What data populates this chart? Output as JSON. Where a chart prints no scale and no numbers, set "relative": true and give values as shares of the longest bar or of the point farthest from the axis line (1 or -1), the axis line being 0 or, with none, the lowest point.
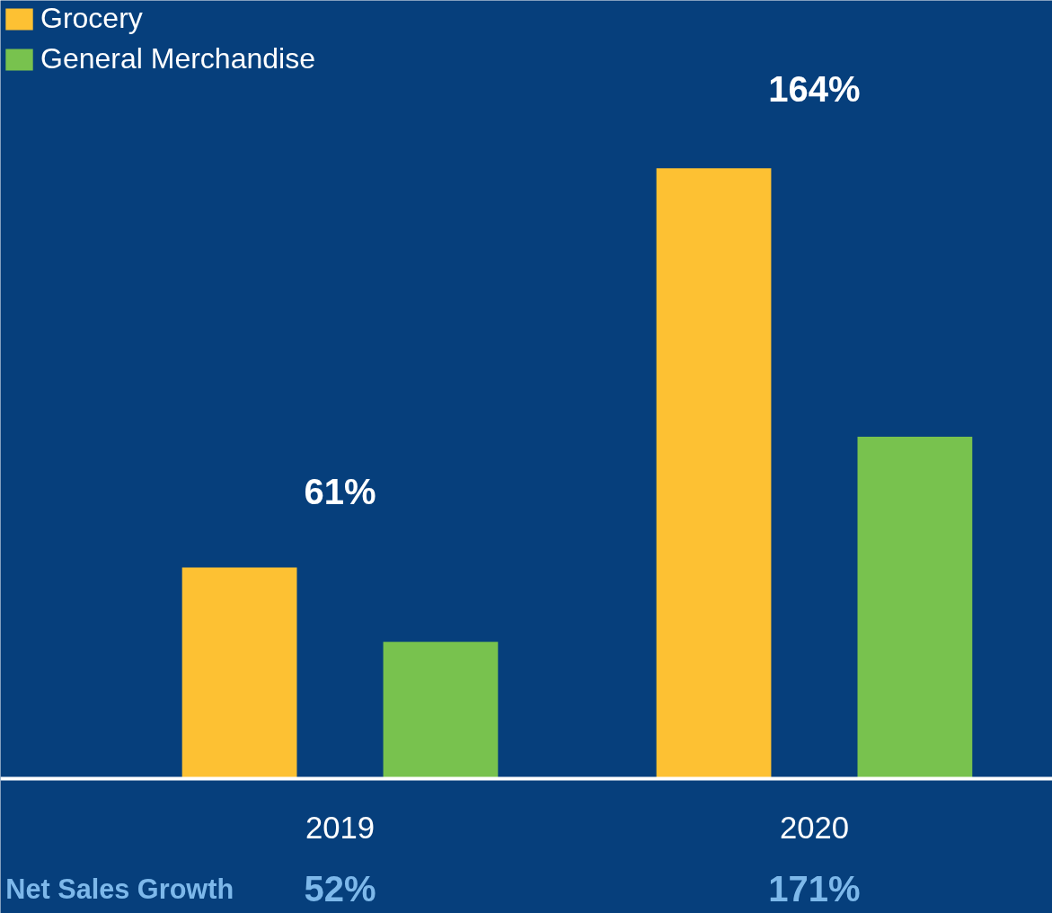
{
  "chart_data": {
    "type": "bar",
    "relative": true,
    "categories": [
      "2019",
      "2020"
    ],
    "series": [
      {
        "name": "Grocery",
        "color": "#fdc133",
        "values": [
          0.346,
          1
        ]
      },
      {
        "name": "General Merchandise",
        "color": "#78c24e",
        "values": [
          0.224,
          0.56
        ]
      }
    ],
    "annotations": [
      "61%",
      "164%",
      "Net Sales Growth",
      "52%",
      "171%"
    ],
    "legend": "top left",
    "grid": false
  }
}
